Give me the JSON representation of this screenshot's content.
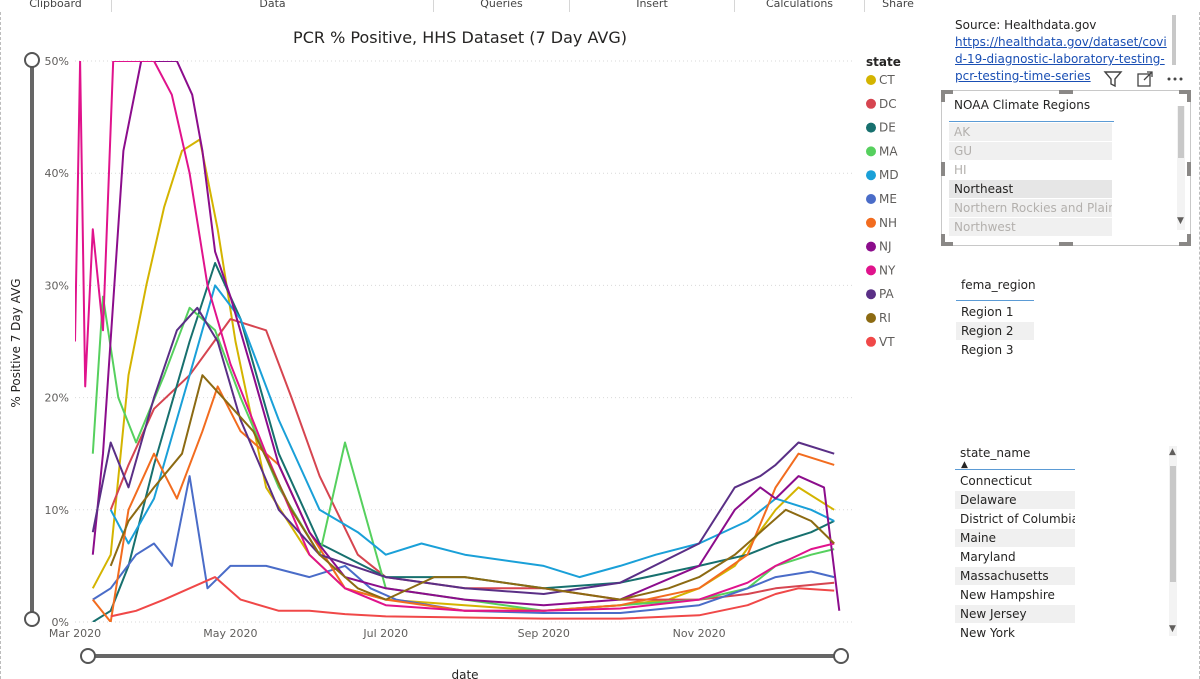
{
  "ribbon": {
    "groups": [
      "Clipboard",
      "Data",
      "Queries",
      "Insert",
      "Calculations",
      "Share"
    ]
  },
  "colors": {
    "CT": "#d4b400",
    "DC": "#d64550",
    "DE": "#17706e",
    "MA": "#56d05e",
    "MD": "#1aa0d8",
    "ME": "#4a6cc8",
    "NH": "#f26c1f",
    "NJ": "#8c0d8c",
    "NY": "#e0138c",
    "PA": "#5a2f86",
    "RI": "#8c6a12",
    "VT": "#f04848"
  },
  "chart_data": {
    "type": "line",
    "title": "PCR % Positive, HHS Dataset (7 Day AVG)",
    "xlabel": "date",
    "ylabel": "% Positive 7 Day AVG",
    "x_domain": [
      "2020-03-01",
      "2020-12-31"
    ],
    "x_ticks": [
      {
        "date": "2020-03-01",
        "label": "Mar 2020"
      },
      {
        "date": "2020-05-01",
        "label": "May 2020"
      },
      {
        "date": "2020-07-01",
        "label": "Jul 2020"
      },
      {
        "date": "2020-09-01",
        "label": "Sep 2020"
      },
      {
        "date": "2020-11-01",
        "label": "Nov 2020"
      }
    ],
    "ylim": [
      0,
      50
    ],
    "y_ticks": [
      0,
      10,
      20,
      30,
      40,
      50
    ],
    "y_tick_labels": [
      "0%",
      "10%",
      "20%",
      "30%",
      "40%",
      "50%"
    ],
    "legend_title": "state",
    "legend_position": "right",
    "series": [
      {
        "name": "CT",
        "points": [
          [
            "2020-03-08",
            3
          ],
          [
            "2020-03-15",
            6
          ],
          [
            "2020-03-22",
            22
          ],
          [
            "2020-03-29",
            30
          ],
          [
            "2020-04-05",
            37
          ],
          [
            "2020-04-12",
            42
          ],
          [
            "2020-04-19",
            43
          ],
          [
            "2020-04-26",
            35
          ],
          [
            "2020-05-03",
            25
          ],
          [
            "2020-05-15",
            12
          ],
          [
            "2020-06-01",
            6
          ],
          [
            "2020-06-15",
            3
          ],
          [
            "2020-07-01",
            2
          ],
          [
            "2020-08-01",
            1.5
          ],
          [
            "2020-09-01",
            1
          ],
          [
            "2020-10-01",
            1.5
          ],
          [
            "2020-10-20",
            2
          ],
          [
            "2020-11-01",
            3
          ],
          [
            "2020-11-15",
            5
          ],
          [
            "2020-12-01",
            10
          ],
          [
            "2020-12-10",
            12
          ],
          [
            "2020-12-24",
            10
          ]
        ]
      },
      {
        "name": "DC",
        "points": [
          [
            "2020-03-15",
            10
          ],
          [
            "2020-03-22",
            14
          ],
          [
            "2020-04-01",
            19
          ],
          [
            "2020-04-15",
            22
          ],
          [
            "2020-05-01",
            27
          ],
          [
            "2020-05-15",
            26
          ],
          [
            "2020-05-25",
            20
          ],
          [
            "2020-06-05",
            13
          ],
          [
            "2020-06-20",
            6
          ],
          [
            "2020-07-01",
            4
          ],
          [
            "2020-08-01",
            3
          ],
          [
            "2020-09-01",
            3
          ],
          [
            "2020-10-01",
            2
          ],
          [
            "2020-11-01",
            2
          ],
          [
            "2020-11-20",
            2.5
          ],
          [
            "2020-12-01",
            3
          ],
          [
            "2020-12-24",
            3.5
          ]
        ]
      },
      {
        "name": "DE",
        "points": [
          [
            "2020-03-08",
            0
          ],
          [
            "2020-03-15",
            1
          ],
          [
            "2020-03-22",
            5
          ],
          [
            "2020-04-01",
            14
          ],
          [
            "2020-04-15",
            25
          ],
          [
            "2020-04-25",
            32
          ],
          [
            "2020-05-05",
            27
          ],
          [
            "2020-05-20",
            15
          ],
          [
            "2020-06-05",
            7
          ],
          [
            "2020-07-01",
            4
          ],
          [
            "2020-08-01",
            4
          ],
          [
            "2020-09-01",
            3
          ],
          [
            "2020-10-01",
            3.5
          ],
          [
            "2020-11-01",
            5
          ],
          [
            "2020-11-20",
            6
          ],
          [
            "2020-12-01",
            7
          ],
          [
            "2020-12-15",
            8
          ],
          [
            "2020-12-24",
            9
          ]
        ]
      },
      {
        "name": "MA",
        "points": [
          [
            "2020-03-08",
            15
          ],
          [
            "2020-03-12",
            29
          ],
          [
            "2020-03-18",
            20
          ],
          [
            "2020-03-25",
            16
          ],
          [
            "2020-04-05",
            22
          ],
          [
            "2020-04-15",
            28
          ],
          [
            "2020-04-25",
            26
          ],
          [
            "2020-05-05",
            20
          ],
          [
            "2020-05-20",
            12
          ],
          [
            "2020-06-05",
            6
          ],
          [
            "2020-06-15",
            16
          ],
          [
            "2020-07-01",
            3
          ],
          [
            "2020-08-01",
            2
          ],
          [
            "2020-09-01",
            1
          ],
          [
            "2020-10-01",
            1.5
          ],
          [
            "2020-11-01",
            2
          ],
          [
            "2020-11-20",
            3
          ],
          [
            "2020-12-01",
            5
          ],
          [
            "2020-12-15",
            6
          ],
          [
            "2020-12-24",
            6.5
          ]
        ]
      },
      {
        "name": "MD",
        "points": [
          [
            "2020-03-15",
            10
          ],
          [
            "2020-03-22",
            7
          ],
          [
            "2020-04-01",
            11
          ],
          [
            "2020-04-15",
            22
          ],
          [
            "2020-04-25",
            30
          ],
          [
            "2020-05-05",
            27
          ],
          [
            "2020-05-20",
            18
          ],
          [
            "2020-06-05",
            10
          ],
          [
            "2020-06-20",
            8
          ],
          [
            "2020-07-01",
            6
          ],
          [
            "2020-07-15",
            7
          ],
          [
            "2020-08-01",
            6
          ],
          [
            "2020-09-01",
            5
          ],
          [
            "2020-09-15",
            4
          ],
          [
            "2020-10-01",
            5
          ],
          [
            "2020-10-15",
            6
          ],
          [
            "2020-11-01",
            7
          ],
          [
            "2020-11-20",
            9
          ],
          [
            "2020-12-01",
            11
          ],
          [
            "2020-12-15",
            10
          ],
          [
            "2020-12-24",
            9
          ]
        ]
      },
      {
        "name": "ME",
        "points": [
          [
            "2020-03-08",
            2
          ],
          [
            "2020-03-15",
            3
          ],
          [
            "2020-03-25",
            6
          ],
          [
            "2020-04-01",
            7
          ],
          [
            "2020-04-08",
            5
          ],
          [
            "2020-04-15",
            13
          ],
          [
            "2020-04-22",
            3
          ],
          [
            "2020-05-01",
            5
          ],
          [
            "2020-05-15",
            5
          ],
          [
            "2020-06-01",
            4
          ],
          [
            "2020-06-15",
            5
          ],
          [
            "2020-06-25",
            3
          ],
          [
            "2020-07-05",
            2
          ],
          [
            "2020-08-01",
            1
          ],
          [
            "2020-09-01",
            0.8
          ],
          [
            "2020-10-01",
            0.8
          ],
          [
            "2020-11-01",
            1.5
          ],
          [
            "2020-11-20",
            3
          ],
          [
            "2020-12-01",
            4
          ],
          [
            "2020-12-15",
            4.5
          ],
          [
            "2020-12-24",
            4
          ]
        ]
      },
      {
        "name": "NH",
        "points": [
          [
            "2020-03-08",
            2
          ],
          [
            "2020-03-15",
            0
          ],
          [
            "2020-03-22",
            10
          ],
          [
            "2020-04-01",
            15
          ],
          [
            "2020-04-10",
            11
          ],
          [
            "2020-04-20",
            17
          ],
          [
            "2020-04-26",
            21
          ],
          [
            "2020-05-05",
            17
          ],
          [
            "2020-05-20",
            14
          ],
          [
            "2020-06-01",
            8
          ],
          [
            "2020-06-15",
            3
          ],
          [
            "2020-07-01",
            2
          ],
          [
            "2020-08-01",
            1
          ],
          [
            "2020-09-01",
            1
          ],
          [
            "2020-10-01",
            1.5
          ],
          [
            "2020-11-01",
            3
          ],
          [
            "2020-11-20",
            6
          ],
          [
            "2020-12-01",
            12
          ],
          [
            "2020-12-10",
            15
          ],
          [
            "2020-12-24",
            14
          ]
        ]
      },
      {
        "name": "NJ",
        "points": [
          [
            "2020-03-08",
            6
          ],
          [
            "2020-03-12",
            15
          ],
          [
            "2020-03-20",
            42
          ],
          [
            "2020-03-27",
            50
          ],
          [
            "2020-04-03",
            50
          ],
          [
            "2020-04-10",
            50
          ],
          [
            "2020-04-16",
            47
          ],
          [
            "2020-04-20",
            42
          ],
          [
            "2020-04-25",
            33
          ],
          [
            "2020-05-01",
            29
          ],
          [
            "2020-05-10",
            22
          ],
          [
            "2020-05-20",
            14
          ],
          [
            "2020-06-01",
            8
          ],
          [
            "2020-06-15",
            4
          ],
          [
            "2020-07-01",
            3
          ],
          [
            "2020-08-01",
            2
          ],
          [
            "2020-09-01",
            1.5
          ],
          [
            "2020-10-01",
            2
          ],
          [
            "2020-11-01",
            5
          ],
          [
            "2020-11-15",
            10
          ],
          [
            "2020-11-25",
            12
          ],
          [
            "2020-12-01",
            11
          ],
          [
            "2020-12-10",
            13
          ],
          [
            "2020-12-20",
            12
          ],
          [
            "2020-12-26",
            1
          ]
        ]
      },
      {
        "name": "NY",
        "points": [
          [
            "2020-03-01",
            25
          ],
          [
            "2020-03-03",
            50
          ],
          [
            "2020-03-05",
            21
          ],
          [
            "2020-03-08",
            35
          ],
          [
            "2020-03-12",
            26
          ],
          [
            "2020-03-16",
            50
          ],
          [
            "2020-03-22",
            50
          ],
          [
            "2020-04-01",
            50
          ],
          [
            "2020-04-08",
            47
          ],
          [
            "2020-04-15",
            40
          ],
          [
            "2020-04-22",
            30
          ],
          [
            "2020-05-01",
            23
          ],
          [
            "2020-05-15",
            15
          ],
          [
            "2020-06-01",
            6
          ],
          [
            "2020-06-15",
            3
          ],
          [
            "2020-07-01",
            1.5
          ],
          [
            "2020-08-01",
            1
          ],
          [
            "2020-09-01",
            1
          ],
          [
            "2020-10-01",
            1.2
          ],
          [
            "2020-11-01",
            2
          ],
          [
            "2020-11-20",
            3.5
          ],
          [
            "2020-12-01",
            5
          ],
          [
            "2020-12-15",
            6.5
          ],
          [
            "2020-12-24",
            7
          ]
        ]
      },
      {
        "name": "PA",
        "points": [
          [
            "2020-03-08",
            8
          ],
          [
            "2020-03-15",
            16
          ],
          [
            "2020-03-22",
            12
          ],
          [
            "2020-04-01",
            20
          ],
          [
            "2020-04-10",
            26
          ],
          [
            "2020-04-18",
            28
          ],
          [
            "2020-04-26",
            25
          ],
          [
            "2020-05-05",
            18
          ],
          [
            "2020-05-20",
            10
          ],
          [
            "2020-06-05",
            6
          ],
          [
            "2020-07-01",
            4
          ],
          [
            "2020-08-01",
            3
          ],
          [
            "2020-09-01",
            2.5
          ],
          [
            "2020-10-01",
            3.5
          ],
          [
            "2020-11-01",
            7
          ],
          [
            "2020-11-15",
            12
          ],
          [
            "2020-11-25",
            13
          ],
          [
            "2020-12-01",
            14
          ],
          [
            "2020-12-10",
            16
          ],
          [
            "2020-12-24",
            15
          ]
        ]
      },
      {
        "name": "RI",
        "points": [
          [
            "2020-03-15",
            5
          ],
          [
            "2020-03-22",
            9
          ],
          [
            "2020-04-01",
            12
          ],
          [
            "2020-04-12",
            15
          ],
          [
            "2020-04-20",
            22
          ],
          [
            "2020-04-28",
            20
          ],
          [
            "2020-05-10",
            17
          ],
          [
            "2020-05-25",
            10
          ],
          [
            "2020-06-05",
            6
          ],
          [
            "2020-06-20",
            3
          ],
          [
            "2020-07-01",
            2
          ],
          [
            "2020-07-20",
            4
          ],
          [
            "2020-08-01",
            4
          ],
          [
            "2020-09-01",
            3
          ],
          [
            "2020-10-01",
            2
          ],
          [
            "2020-10-20",
            3
          ],
          [
            "2020-11-01",
            4
          ],
          [
            "2020-11-15",
            6
          ],
          [
            "2020-11-25",
            8
          ],
          [
            "2020-12-05",
            10
          ],
          [
            "2020-12-15",
            9
          ],
          [
            "2020-12-24",
            7
          ]
        ]
      },
      {
        "name": "VT",
        "points": [
          [
            "2020-03-15",
            0.5
          ],
          [
            "2020-03-25",
            1
          ],
          [
            "2020-04-05",
            2
          ],
          [
            "2020-04-15",
            3
          ],
          [
            "2020-04-25",
            4
          ],
          [
            "2020-05-05",
            2
          ],
          [
            "2020-05-20",
            1
          ],
          [
            "2020-06-01",
            1
          ],
          [
            "2020-06-15",
            0.7
          ],
          [
            "2020-07-01",
            0.5
          ],
          [
            "2020-08-01",
            0.4
          ],
          [
            "2020-09-01",
            0.3
          ],
          [
            "2020-10-01",
            0.3
          ],
          [
            "2020-11-01",
            0.6
          ],
          [
            "2020-11-20",
            1.5
          ],
          [
            "2020-12-01",
            2.5
          ],
          [
            "2020-12-10",
            3
          ],
          [
            "2020-12-24",
            2.8
          ]
        ]
      }
    ]
  },
  "source": {
    "label": "Source: Healthdata.gov",
    "link": "https://healthdata.gov/dataset/covid-19-diagnostic-laboratory-testing-pcr-testing-time-series"
  },
  "noaa_slicer": {
    "header": "NOAA Climate Regions",
    "items": [
      "AK",
      "GU",
      "HI",
      "Northeast",
      "Northern Rockies and Plains",
      "Northwest"
    ]
  },
  "fema_slicer": {
    "header": "fema_region",
    "items": [
      "Region 1",
      "Region 2",
      "Region 3"
    ]
  },
  "state_slicer": {
    "header": "state_name",
    "sort_glyph": "▲",
    "items": [
      "Connecticut",
      "Delaware",
      "District of Columbia",
      "Maine",
      "Maryland",
      "Massachusetts",
      "New Hampshire",
      "New Jersey",
      "New York"
    ]
  },
  "icons": {
    "filter": "filter-icon",
    "focus": "focus-mode-icon",
    "more": "more-options-icon"
  }
}
